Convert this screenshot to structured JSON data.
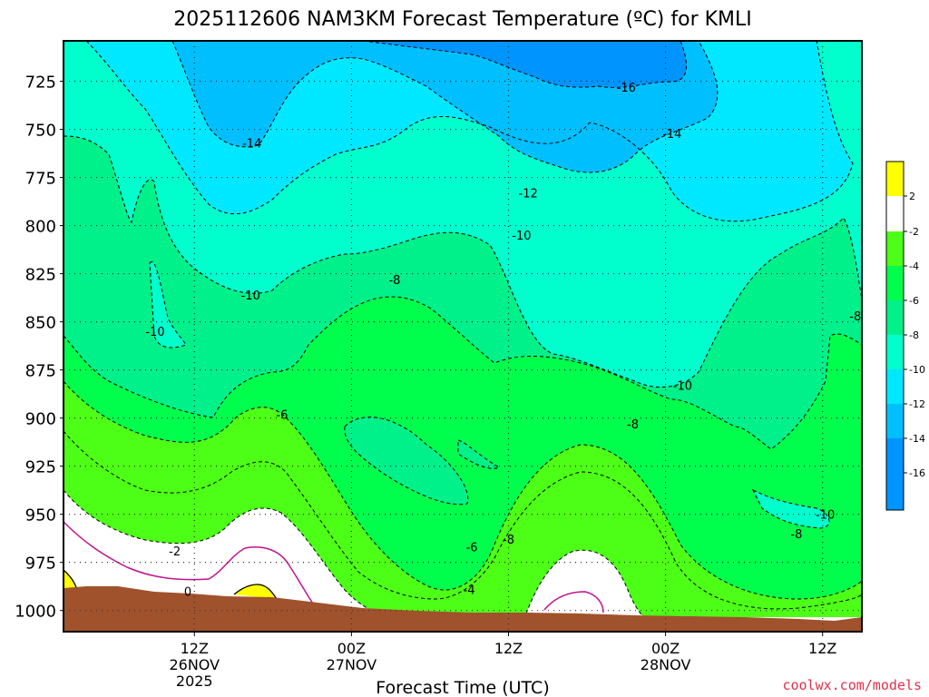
{
  "chart_data": {
    "type": "heatmap",
    "title": "2025112606 NAM3KM Forecast Temperature (ºC) for KMLI",
    "xlabel": "Forecast Time (UTC)",
    "ylabel": "",
    "credit": "coolwx.com/models",
    "x_ticks": [
      {
        "label": "12Z",
        "sub": [
          "26NOV",
          "2025"
        ],
        "hours": 30
      },
      {
        "label": "00Z",
        "sub": [
          "27NOV"
        ],
        "hours": 42
      },
      {
        "label": "12Z",
        "sub": [],
        "hours": 54
      },
      {
        "label": "00Z",
        "sub": [
          "28NOV"
        ],
        "hours": 66
      },
      {
        "label": "12Z",
        "sub": [],
        "hours": 78
      }
    ],
    "xlim": [
      20,
      81
    ],
    "ylim": [
      1011,
      704
    ],
    "y_ticks": [
      725,
      750,
      775,
      800,
      825,
      850,
      875,
      900,
      925,
      950,
      975,
      1000
    ],
    "grid": true,
    "colorbar": {
      "labels": [
        "2",
        "-2",
        "-4",
        "-6",
        "-8",
        "-10",
        "-12",
        "-14",
        "-16"
      ],
      "colors": [
        "#ffff00",
        "#ffffff",
        "#4dff16",
        "#00ff4c",
        "#00f08a",
        "#00ffcc",
        "#00e8ff",
        "#00bfff",
        "#0094ff"
      ]
    },
    "contour_labels": [
      {
        "text": "-16",
        "hours": 63.0,
        "p": 728
      },
      {
        "text": "-14",
        "hours": 34.4,
        "p": 757
      },
      {
        "text": "-14",
        "hours": 66.5,
        "p": 752
      },
      {
        "text": "-12",
        "hours": 55.5,
        "p": 783
      },
      {
        "text": "-10",
        "hours": 55.0,
        "p": 805
      },
      {
        "text": "-10",
        "hours": 34.3,
        "p": 836
      },
      {
        "text": "-10",
        "hours": 27.0,
        "p": 855
      },
      {
        "text": "-10",
        "hours": 67.3,
        "p": 883
      },
      {
        "text": "-10",
        "hours": 78.2,
        "p": 950
      },
      {
        "text": "-8",
        "hours": 45.3,
        "p": 828
      },
      {
        "text": "-8",
        "hours": 80.5,
        "p": 847
      },
      {
        "text": "-8",
        "hours": 63.5,
        "p": 903
      },
      {
        "text": "-8",
        "hours": 54.0,
        "p": 963
      },
      {
        "text": "-8",
        "hours": 76.0,
        "p": 960
      },
      {
        "text": "-6",
        "hours": 36.7,
        "p": 898
      },
      {
        "text": "-6",
        "hours": 51.2,
        "p": 967
      },
      {
        "text": "-4",
        "hours": 51.0,
        "p": 989
      },
      {
        "text": "-2",
        "hours": 28.5,
        "p": 969
      },
      {
        "text": "0",
        "hours": 29.5,
        "p": 990
      }
    ]
  }
}
